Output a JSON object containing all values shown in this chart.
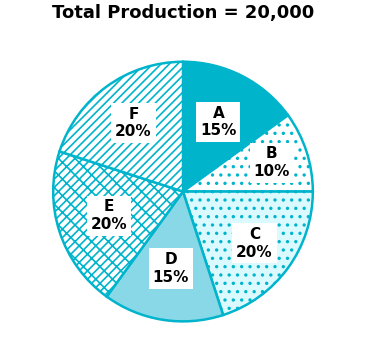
{
  "title": "Total Production = 20,000",
  "labels": [
    "A",
    "B",
    "C",
    "D",
    "E",
    "F"
  ],
  "sizes": [
    15,
    10,
    20,
    15,
    20,
    20
  ],
  "colors": [
    "#00B4CC",
    "#FFFFFF",
    "#DAFAFF",
    "#88D8E8",
    "#FFFFFF",
    "#FFFFFF"
  ],
  "edge_color": "#00B4CC",
  "hatches": [
    "",
    "..",
    "..",
    "",
    "//\\\\//\\\\",
    "////"
  ],
  "title_fontsize": 13,
  "label_fontsize": 11,
  "startangle": 90,
  "hatch_linewidth": 1.2
}
